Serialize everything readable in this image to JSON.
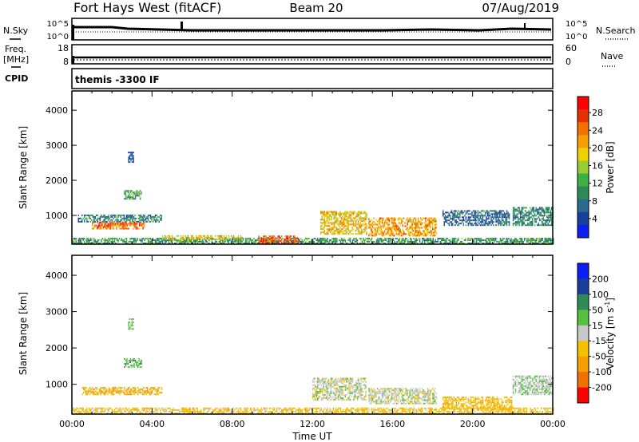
{
  "header": {
    "title": "Fort Hays West (fitACF)",
    "beam": "Beam 20",
    "date": "07/Aug/2019"
  },
  "top_panels": {
    "nsky_label": "N.Sky",
    "nsky_ticks": [
      "10^5",
      "10^0"
    ],
    "nsearch_label": "N.Search",
    "nsearch_ticks": [
      "10^5",
      "10^0"
    ],
    "freq_label_1": "Freq.",
    "freq_label_2": "[MHz]",
    "freq_ticks": [
      "18",
      "8"
    ],
    "nave_label": "Nave",
    "nave_ticks": [
      "60",
      "0"
    ],
    "cpid_label": "CPID",
    "cpid_text": "themis -3300 IF"
  },
  "chart_data": [
    {
      "type": "heatmap",
      "name": "power",
      "ylabel": "Slant Range [km]",
      "xlabel": "Time UT",
      "xlim": [
        0,
        24
      ],
      "ylim": [
        180,
        4550
      ],
      "x_ticks": [
        "00:00",
        "04:00",
        "08:00",
        "12:00",
        "16:00",
        "20:00",
        "00:00"
      ],
      "y_ticks": [
        1000,
        2000,
        3000,
        4000
      ],
      "colorbar": {
        "label": "Power [dB]",
        "ticks": [
          "28",
          "24",
          "20",
          "16",
          "12",
          "8",
          "4"
        ],
        "range": [
          0,
          32
        ],
        "colors": [
          "#0b1ff2",
          "#1a3f9a",
          "#2a6a8f",
          "#2e8b57",
          "#3cb043",
          "#9acd32",
          "#f0d000",
          "#f5a000",
          "#f07000",
          "#e63000",
          "#ff0000"
        ]
      },
      "regions": [
        {
          "t0": 0.0,
          "t1": 24.0,
          "r0": 180,
          "r1": 330,
          "level": 11
        },
        {
          "t0": 1.0,
          "t1": 3.6,
          "r0": 600,
          "r1": 800,
          "level": 25
        },
        {
          "t0": 0.3,
          "t1": 4.5,
          "r0": 800,
          "r1": 1000,
          "level": 9
        },
        {
          "t0": 2.6,
          "t1": 3.5,
          "r0": 1450,
          "r1": 1700,
          "level": 12
        },
        {
          "t0": 2.8,
          "t1": 3.1,
          "r0": 2500,
          "r1": 2800,
          "level": 6
        },
        {
          "t0": 4.5,
          "t1": 8.5,
          "r0": 300,
          "r1": 420,
          "level": 19
        },
        {
          "t0": 9.3,
          "t1": 11.3,
          "r0": 200,
          "r1": 400,
          "level": 27
        },
        {
          "t0": 12.4,
          "t1": 14.7,
          "r0": 450,
          "r1": 1100,
          "level": 20
        },
        {
          "t0": 14.8,
          "t1": 18.2,
          "r0": 400,
          "r1": 900,
          "level": 22
        },
        {
          "t0": 18.5,
          "t1": 21.8,
          "r0": 700,
          "r1": 1150,
          "level": 7
        },
        {
          "t0": 22.0,
          "t1": 24.0,
          "r0": 700,
          "r1": 1200,
          "level": 9
        }
      ]
    },
    {
      "type": "heatmap",
      "name": "velocity",
      "ylabel": "Slant Range [km]",
      "xlabel": "Time UT",
      "xlim": [
        0,
        24
      ],
      "ylim": [
        180,
        4550
      ],
      "x_ticks": [
        "00:00",
        "04:00",
        "08:00",
        "12:00",
        "16:00",
        "20:00",
        "00:00"
      ],
      "y_ticks": [
        1000,
        2000,
        3000,
        4000
      ],
      "colorbar": {
        "label": "Velocity [m s",
        "label_sup": "-1",
        "label_tail": "]",
        "ticks": [
          "200",
          "100",
          "50",
          "15",
          "-15",
          "-50",
          "-100",
          "-200"
        ],
        "colors": [
          "#0b1ff2",
          "#1a3f9a",
          "#2e8b57",
          "#55c040",
          "#c8c8c8",
          "#f5c000",
          "#f5a000",
          "#f07000",
          "#ff0000"
        ]
      },
      "regions": [
        {
          "t0": 0.0,
          "t1": 24.0,
          "r0": 180,
          "r1": 330,
          "level": -30
        },
        {
          "t0": 0.5,
          "t1": 4.5,
          "r0": 700,
          "r1": 900,
          "level": -60
        },
        {
          "t0": 2.6,
          "t1": 3.5,
          "r0": 1450,
          "r1": 1700,
          "level": 40
        },
        {
          "t0": 2.8,
          "t1": 3.1,
          "r0": 2500,
          "r1": 2800,
          "level": 20
        },
        {
          "t0": 12.0,
          "t1": 14.7,
          "r0": 550,
          "r1": 1150,
          "level": 0
        },
        {
          "t0": 14.8,
          "t1": 18.2,
          "r0": 450,
          "r1": 900,
          "level": 0
        },
        {
          "t0": 18.5,
          "t1": 22.0,
          "r0": 300,
          "r1": 650,
          "level": -40
        },
        {
          "t0": 22.0,
          "t1": 24.0,
          "r0": 700,
          "r1": 1200,
          "level": 10
        }
      ]
    }
  ]
}
